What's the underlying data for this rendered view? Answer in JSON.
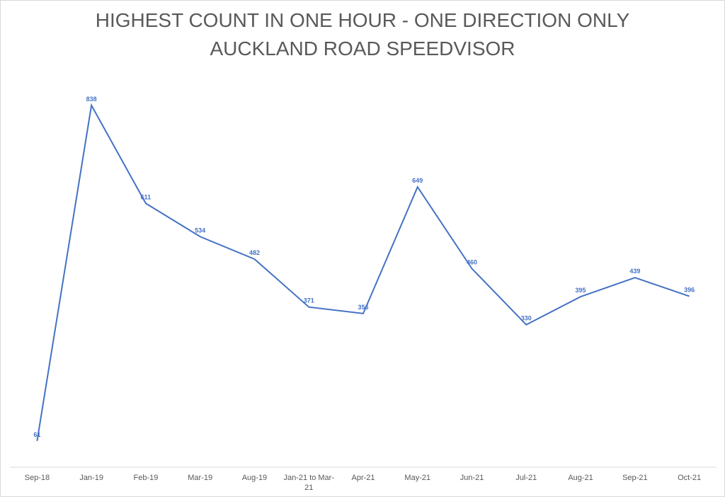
{
  "chart_data": {
    "type": "line",
    "title": "HIGHEST COUNT IN ONE HOUR - ONE DIRECTION ONLY",
    "subtitle": "AUCKLAND ROAD SPEEDVISOR",
    "categories": [
      "Sep-18",
      "Jan-19",
      "Feb-19",
      "Mar-19",
      "Aug-19",
      "Jan-21 to Mar-21",
      "Apr-21",
      "May-21",
      "Jun-21",
      "Jul-21",
      "Aug-21",
      "Sep-21",
      "Oct-21"
    ],
    "series": [
      {
        "color": "#4472c4",
        "values": [
          61,
          838,
          611,
          534,
          482,
          371,
          356,
          649,
          460,
          330,
          395,
          439,
          396
        ]
      }
    ],
    "ylim": [
      0,
      900
    ]
  }
}
